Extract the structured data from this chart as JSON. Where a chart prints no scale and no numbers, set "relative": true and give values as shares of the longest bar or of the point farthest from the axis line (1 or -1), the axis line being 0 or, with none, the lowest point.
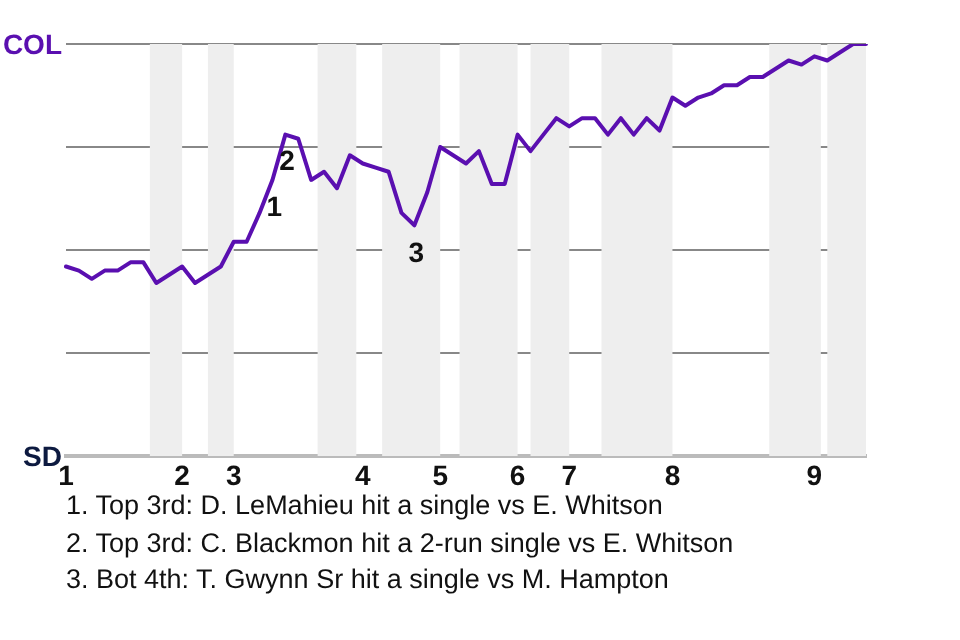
{
  "chart_data": {
    "type": "line",
    "relative": true,
    "categories": [
      "1",
      null,
      null,
      null,
      null,
      null,
      null,
      null,
      null,
      "2",
      null,
      null,
      null,
      "3",
      null,
      null,
      null,
      null,
      null,
      null,
      null,
      null,
      null,
      "4",
      null,
      null,
      null,
      null,
      null,
      "5",
      null,
      null,
      null,
      null,
      null,
      "6",
      null,
      null,
      null,
      "7",
      null,
      null,
      null,
      null,
      null,
      null,
      null,
      "8",
      null,
      null,
      null,
      null,
      null,
      null,
      null,
      null,
      null,
      null,
      "9",
      null,
      null,
      null,
      null
    ],
    "grid": "y",
    "marker": "none",
    "legend": false,
    "series": [
      {
        "color": "#5a0fb0",
        "values": [
          0.46,
          0.45,
          0.43,
          0.45,
          0.45,
          0.47,
          0.47,
          0.42,
          0.44,
          0.46,
          0.42,
          0.44,
          0.46,
          0.52,
          0.52,
          0.59,
          0.67,
          0.78,
          0.77,
          0.67,
          0.69,
          0.65,
          0.73,
          0.71,
          0.7,
          0.69,
          0.59,
          0.56,
          0.64,
          0.75,
          0.73,
          0.71,
          0.74,
          0.66,
          0.66,
          0.78,
          0.74,
          0.78,
          0.82,
          0.8,
          0.82,
          0.82,
          0.78,
          0.82,
          0.78,
          0.82,
          0.79,
          0.87,
          0.85,
          0.87,
          0.88,
          0.9,
          0.9,
          0.92,
          0.92,
          0.94,
          0.96,
          0.95,
          0.97,
          0.96,
          0.98,
          1,
          1
        ]
      }
    ],
    "annotations": [
      "COL",
      "SD",
      "1",
      "2",
      "3",
      "1. Top 3rd: D. LeMahieu hit a single vs E. Whitson",
      "2. Top 3rd: C. Blackmon hit a 2-run single vs E. Whitson",
      "3. Bot 4th: T. Gwynn Sr hit a single vs M. Hampton"
    ]
  }
}
